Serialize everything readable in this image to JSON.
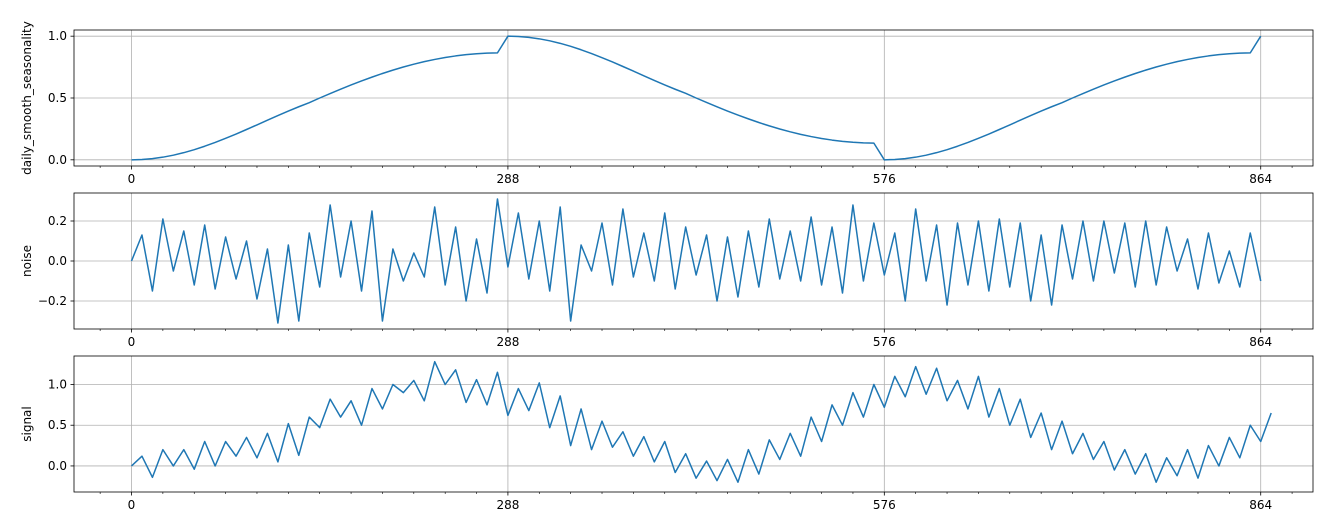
{
  "chart_data": [
    {
      "type": "line",
      "ylabel": "daily_smooth_seasonality",
      "xlim": [
        -44,
        904
      ],
      "ylim": [
        -0.05,
        1.05
      ],
      "x_ticks": [
        0,
        288,
        576,
        864
      ],
      "x_minor_step": 24,
      "y_ticks": [
        0.0,
        0.5,
        1.0
      ],
      "y_tick_labels": [
        "0.0",
        "0.5",
        "1.0"
      ],
      "grid": true,
      "color": "#1f77b4",
      "series": [
        {
          "x_start": 0,
          "x_step": 8,
          "values": [
            0,
            0.0024,
            0.0095,
            0.0213,
            0.0375,
            0.0579,
            0.0822,
            0.1099,
            0.1406,
            0.1737,
            0.2087,
            0.2452,
            0.2826,
            0.3202,
            0.3576,
            0.3941,
            0.4292,
            0.4623,
            0.5,
            0.5361,
            0.5713,
            0.6054,
            0.638,
            0.669,
            0.6983,
            0.7255,
            0.7506,
            0.7735,
            0.794,
            0.812,
            0.8274,
            0.8403,
            0.8505,
            0.8579,
            0.8627,
            0.8648,
            1.0,
            0.9976,
            0.9905,
            0.9787,
            0.9625,
            0.9421,
            0.9178,
            0.8901,
            0.8594,
            0.8263,
            0.7913,
            0.7548,
            0.7174,
            0.6798,
            0.6424,
            0.6059,
            0.5708,
            0.5377,
            0.5,
            0.4639,
            0.4287,
            0.3946,
            0.362,
            0.331,
            0.3017,
            0.2745,
            0.2494,
            0.2265,
            0.206,
            0.188,
            0.1726,
            0.1597,
            0.1495,
            0.1421,
            0.1373,
            0.1352,
            0,
            0.0024,
            0.0095,
            0.0213,
            0.0375,
            0.0579,
            0.0822,
            0.1099,
            0.1406,
            0.1737,
            0.2087,
            0.2452,
            0.2826,
            0.3202,
            0.3576,
            0.3941,
            0.4292,
            0.4623,
            0.5,
            0.5361,
            0.5713,
            0.6054,
            0.638,
            0.669,
            0.6983,
            0.7255,
            0.7506,
            0.7735,
            0.794,
            0.812,
            0.8274,
            0.8403,
            0.8505,
            0.8579,
            0.8627,
            0.8648,
            1.0
          ]
        }
      ]
    },
    {
      "type": "line",
      "ylabel": "noise",
      "xlim": [
        -44,
        904
      ],
      "ylim": [
        -0.34,
        0.34
      ],
      "x_ticks": [
        0,
        288,
        576,
        864
      ],
      "x_minor_step": 24,
      "y_ticks": [
        -0.2,
        0.0,
        0.2
      ],
      "y_tick_labels": [
        "−0.2",
        "0.0",
        "0.2"
      ],
      "grid": true,
      "color": "#1f77b4",
      "series": [
        {
          "x_start": 0,
          "x_step": 8,
          "values": [
            0.0,
            0.13,
            -0.15,
            0.21,
            -0.05,
            0.15,
            -0.12,
            0.18,
            -0.14,
            0.12,
            -0.09,
            0.1,
            -0.19,
            0.06,
            -0.31,
            0.08,
            -0.3,
            0.14,
            -0.13,
            0.28,
            -0.08,
            0.2,
            -0.15,
            0.25,
            -0.3,
            0.06,
            -0.1,
            0.04,
            -0.08,
            0.27,
            -0.12,
            0.17,
            -0.2,
            0.11,
            -0.16,
            0.31,
            -0.03,
            0.24,
            -0.09,
            0.2,
            -0.15,
            0.27,
            -0.3,
            0.08,
            -0.05,
            0.19,
            -0.12,
            0.26,
            -0.08,
            0.14,
            -0.1,
            0.24,
            -0.14,
            0.17,
            -0.07,
            0.13,
            -0.2,
            0.12,
            -0.18,
            0.15,
            -0.13,
            0.21,
            -0.09,
            0.15,
            -0.1,
            0.22,
            -0.12,
            0.17,
            -0.16,
            0.28,
            -0.1,
            0.19,
            -0.07,
            0.14,
            -0.2,
            0.26,
            -0.1,
            0.18,
            -0.22,
            0.19,
            -0.12,
            0.2,
            -0.15,
            0.21,
            -0.13,
            0.19,
            -0.2,
            0.13,
            -0.22,
            0.18,
            -0.09,
            0.2,
            -0.1,
            0.2,
            -0.06,
            0.19,
            -0.13,
            0.2,
            -0.12,
            0.17,
            -0.05,
            0.11,
            -0.14,
            0.14,
            -0.11,
            0.05,
            -0.13,
            0.14,
            -0.1
          ]
        }
      ]
    },
    {
      "type": "line",
      "ylabel": "signal",
      "xlim": [
        -44,
        904
      ],
      "ylim": [
        -0.32,
        1.35
      ],
      "x_ticks": [
        0,
        288,
        576,
        864
      ],
      "x_minor_step": 24,
      "y_ticks": [
        0.0,
        0.5,
        1.0
      ],
      "y_tick_labels": [
        "0.0",
        "0.5",
        "1.0"
      ],
      "grid": true,
      "color": "#1f77b4",
      "series": [
        {
          "x_start": 0,
          "x_step": 8,
          "values": [
            0.0,
            0.12,
            -0.14,
            0.2,
            0.0,
            0.2,
            -0.04,
            0.3,
            0.0,
            0.3,
            0.12,
            0.35,
            0.1,
            0.4,
            0.05,
            0.52,
            0.13,
            0.6,
            0.47,
            0.82,
            0.6,
            0.8,
            0.5,
            0.95,
            0.7,
            1.0,
            0.9,
            1.05,
            0.8,
            1.28,
            1.0,
            1.18,
            0.78,
            1.06,
            0.75,
            1.15,
            0.62,
            0.95,
            0.68,
            1.02,
            0.47,
            0.86,
            0.25,
            0.7,
            0.2,
            0.55,
            0.23,
            0.42,
            0.12,
            0.36,
            0.05,
            0.3,
            -0.08,
            0.15,
            -0.15,
            0.06,
            -0.18,
            0.08,
            -0.2,
            0.2,
            -0.1,
            0.32,
            0.08,
            0.4,
            0.12,
            0.6,
            0.3,
            0.75,
            0.5,
            0.9,
            0.6,
            1.0,
            0.72,
            1.1,
            0.85,
            1.22,
            0.88,
            1.2,
            0.8,
            1.05,
            0.7,
            1.1,
            0.6,
            0.95,
            0.5,
            0.82,
            0.35,
            0.65,
            0.2,
            0.55,
            0.15,
            0.4,
            0.08,
            0.3,
            -0.05,
            0.2,
            -0.1,
            0.15,
            -0.2,
            0.1,
            -0.12,
            0.2,
            -0.15,
            0.25,
            0.0,
            0.35,
            0.1,
            0.5,
            0.3,
            0.65
          ]
        }
      ]
    }
  ]
}
